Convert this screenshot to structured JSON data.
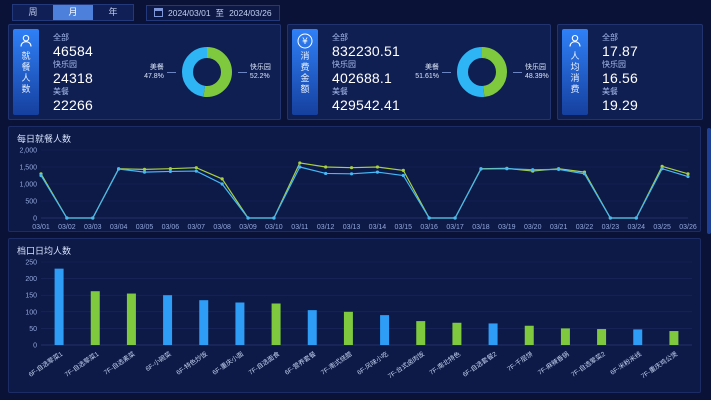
{
  "header": {
    "tabs": [
      {
        "label": "周",
        "active": false
      },
      {
        "label": "月",
        "active": true
      },
      {
        "label": "年",
        "active": false
      }
    ],
    "date_start": "2024/03/01",
    "date_separator": "至",
    "date_end": "2024/03/26"
  },
  "cards": [
    {
      "title": "就餐人数",
      "icon": "person-icon",
      "stats": [
        {
          "label": "全部",
          "value": "46584"
        },
        {
          "label": "快乐园",
          "value": "24318"
        },
        {
          "label": "美餐",
          "value": "22266"
        }
      ]
    },
    {
      "title": "消费金额",
      "icon": "yuan-icon",
      "stats": [
        {
          "label": "全部",
          "value": "832230.51"
        },
        {
          "label": "快乐园",
          "value": "402688.1"
        },
        {
          "label": "美餐",
          "value": "429542.41"
        }
      ]
    },
    {
      "title": "人均消费",
      "icon": "person-icon",
      "stats": [
        {
          "label": "全部",
          "value": "17.87"
        },
        {
          "label": "快乐园",
          "value": "16.56"
        },
        {
          "label": "美餐",
          "value": "19.29"
        }
      ]
    }
  ],
  "colors": {
    "background": "#0a1238",
    "panel": "#0d1947",
    "accent_blue": "#2e9df5",
    "accent_green": "#7ec93e",
    "tab_active": "#4c80da"
  },
  "chart_data": [
    {
      "type": "line",
      "title": "每日就餐人数",
      "x": [
        "03/01",
        "03/02",
        "03/03",
        "03/04",
        "03/05",
        "03/06",
        "03/07",
        "03/08",
        "03/09",
        "03/10",
        "03/11",
        "03/12",
        "03/13",
        "03/14",
        "03/15",
        "03/16",
        "03/17",
        "03/18",
        "03/19",
        "03/20",
        "03/21",
        "03/22",
        "03/23",
        "03/24",
        "03/25",
        "03/26"
      ],
      "series": [
        {
          "name": "green",
          "color": "#a8cf3f",
          "values": [
            1300,
            0,
            0,
            1450,
            1430,
            1450,
            1480,
            1150,
            0,
            0,
            1620,
            1500,
            1480,
            1500,
            1400,
            0,
            0,
            1450,
            1460,
            1380,
            1450,
            1350,
            0,
            0,
            1520,
            1300
          ]
        },
        {
          "name": "blue",
          "color": "#45b8f5",
          "values": [
            1250,
            0,
            0,
            1440,
            1350,
            1370,
            1380,
            1000,
            0,
            0,
            1500,
            1310,
            1300,
            1350,
            1250,
            0,
            0,
            1440,
            1450,
            1420,
            1430,
            1300,
            0,
            0,
            1450,
            1220
          ]
        }
      ],
      "ylim": [
        0,
        2000
      ],
      "yticks": [
        0,
        500,
        1000,
        1500,
        2000
      ],
      "grid": true,
      "legend": "none"
    },
    {
      "type": "bar",
      "title": "档口日均人数",
      "categories": [
        "6F-自选荤菜1",
        "7F-自选荤菜1",
        "7F-自选素菜",
        "6F-小碗菜",
        "6F-特色炒饭",
        "6F-重庆小面",
        "7F-自选面食",
        "6F-营养套餐",
        "7F-南式烧腊",
        "6F-风味小吃",
        "7F-台式卤肉饭",
        "7F-南北特色",
        "6F-自选套餐2",
        "7F-千层饼",
        "7F-麻辣香锅",
        "7F-自选荤菜2",
        "6F-米粉米线",
        "7F-重庆鸡公煲"
      ],
      "values": [
        230,
        162,
        155,
        150,
        135,
        128,
        125,
        105,
        100,
        90,
        72,
        67,
        65,
        58,
        50,
        48,
        47,
        42
      ],
      "bar_colors": [
        "#2e9df5",
        "#7ec93e",
        "#7ec93e",
        "#2e9df5",
        "#2e9df5",
        "#2e9df5",
        "#7ec93e",
        "#2e9df5",
        "#7ec93e",
        "#2e9df5",
        "#7ec93e",
        "#7ec93e",
        "#2e9df5",
        "#7ec93e",
        "#7ec93e",
        "#7ec93e",
        "#2e9df5",
        "#7ec93e"
      ],
      "ylim": [
        0,
        250
      ],
      "yticks": [
        0,
        50,
        100,
        150,
        200,
        250
      ],
      "grid": true,
      "legend": "none"
    },
    {
      "type": "pie",
      "title": "",
      "slices": [
        {
          "label": "美餐",
          "value": 47.8,
          "pct": "47.8%",
          "color": "#2eb5f5"
        },
        {
          "label": "快乐园",
          "value": 52.2,
          "pct": "52.2%",
          "color": "#7ec93e"
        }
      ]
    },
    {
      "type": "pie",
      "title": "",
      "slices": [
        {
          "label": "美餐",
          "value": 51.61,
          "pct": "51.61%",
          "color": "#2eb5f5"
        },
        {
          "label": "快乐园",
          "value": 48.39,
          "pct": "48.39%",
          "color": "#7ec93e"
        }
      ]
    }
  ]
}
